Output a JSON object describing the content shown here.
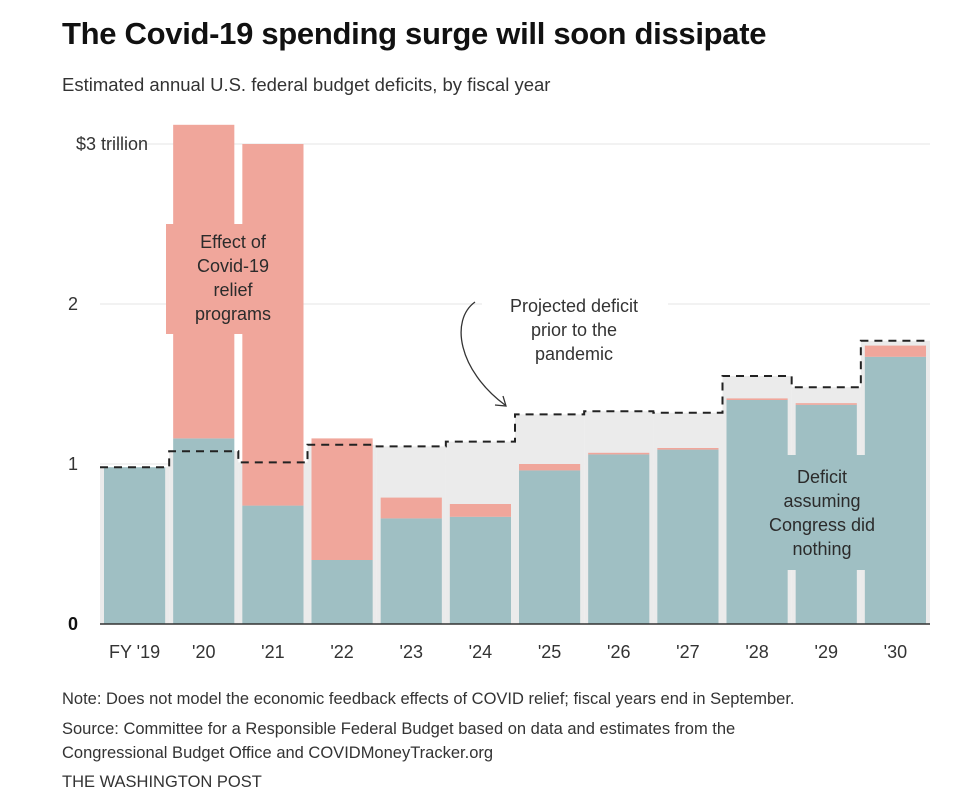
{
  "chart_data": {
    "type": "bar",
    "title": "The Covid-19 spending surge will soon dissipate",
    "subtitle": "Estimated annual U.S. federal budget deficits, by fiscal year",
    "xlabel": "",
    "ylabel": "",
    "ylim": [
      0,
      3.15
    ],
    "y_unit": "trillion dollars",
    "yticks": [
      {
        "value": 3,
        "label": "$3 trillion"
      },
      {
        "value": 2,
        "label": "2"
      },
      {
        "value": 1,
        "label": "1"
      },
      {
        "value": 0,
        "label": "0"
      }
    ],
    "grid": true,
    "stacked": true,
    "categories": [
      "FY '19",
      "'20",
      "'21",
      "'22",
      "'23",
      "'24",
      "'25",
      "'26",
      "'27",
      "'28",
      "'29",
      "'30"
    ],
    "series": [
      {
        "name": "Deficit assuming Congress did nothing",
        "color": "#9fbfc3",
        "values": [
          0.98,
          1.16,
          0.74,
          0.4,
          0.66,
          0.67,
          0.96,
          1.06,
          1.09,
          1.4,
          1.37,
          1.67
        ]
      },
      {
        "name": "Effect of Covid-19 relief programs",
        "color": "#f0a69b",
        "values": [
          0.0,
          1.96,
          2.26,
          0.76,
          0.13,
          0.08,
          0.04,
          0.01,
          0.01,
          0.01,
          0.01,
          0.07
        ]
      },
      {
        "name": "Projected deficit prior to the pandemic",
        "type": "step-line",
        "style": "dashed",
        "color": "#222222",
        "fill": "#ebebeb",
        "values": [
          0.98,
          1.08,
          1.01,
          1.12,
          1.11,
          1.14,
          1.31,
          1.33,
          1.32,
          1.55,
          1.48,
          1.77
        ]
      }
    ],
    "annotations": [
      {
        "id": "covid",
        "lines": [
          "Effect of",
          "Covid-19",
          "relief",
          "programs"
        ],
        "near": "'20-'21"
      },
      {
        "id": "projected",
        "lines": [
          "Projected deficit",
          "prior to the",
          "pandemic"
        ],
        "near": "'24-'25",
        "arrow": true
      },
      {
        "id": "nothing",
        "lines": [
          "Deficit",
          "assuming",
          "Congress did",
          "nothing"
        ],
        "near": "'29"
      }
    ]
  },
  "footer": {
    "note": "Note: Does not model the economic feedback effects of COVID relief; fiscal years end in September.",
    "source_line1": "Source:  Committee for a Responsible Federal Budget based on data and estimates from the",
    "source_line2": "Congressional Budget Office and COVIDMoneyTracker.org",
    "credit": "The Washington Post"
  }
}
